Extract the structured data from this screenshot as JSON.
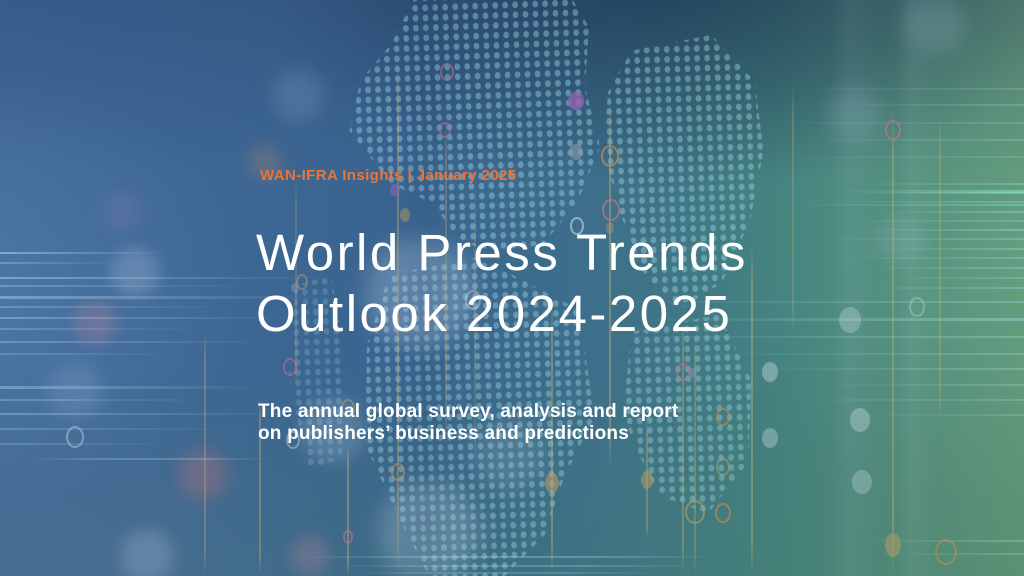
{
  "page": {
    "kicker": "WAN-IFRA Insights | January 2025",
    "title": {
      "line1": "World Press Trends",
      "line2": "Outlook 2024-2025"
    },
    "subtitle": {
      "line1": "The annual global survey, analysis and report",
      "line2": "on publishers’ business and predictions"
    }
  },
  "palette": {
    "accent_orange": "#ED7434",
    "title_white": "#FFFFFF",
    "bg_blue_left": "#41699B",
    "bg_navy_top": "#2B4C7E",
    "bg_teal_center": "#3D6F8B",
    "bg_green_bottom_right": "#62947A",
    "map_dot_cyan": "#9FD8E4",
    "stem_line_tan": "#C0AD70",
    "ring_pink": "#C2738F",
    "ring_orange": "#CD8B4E"
  }
}
